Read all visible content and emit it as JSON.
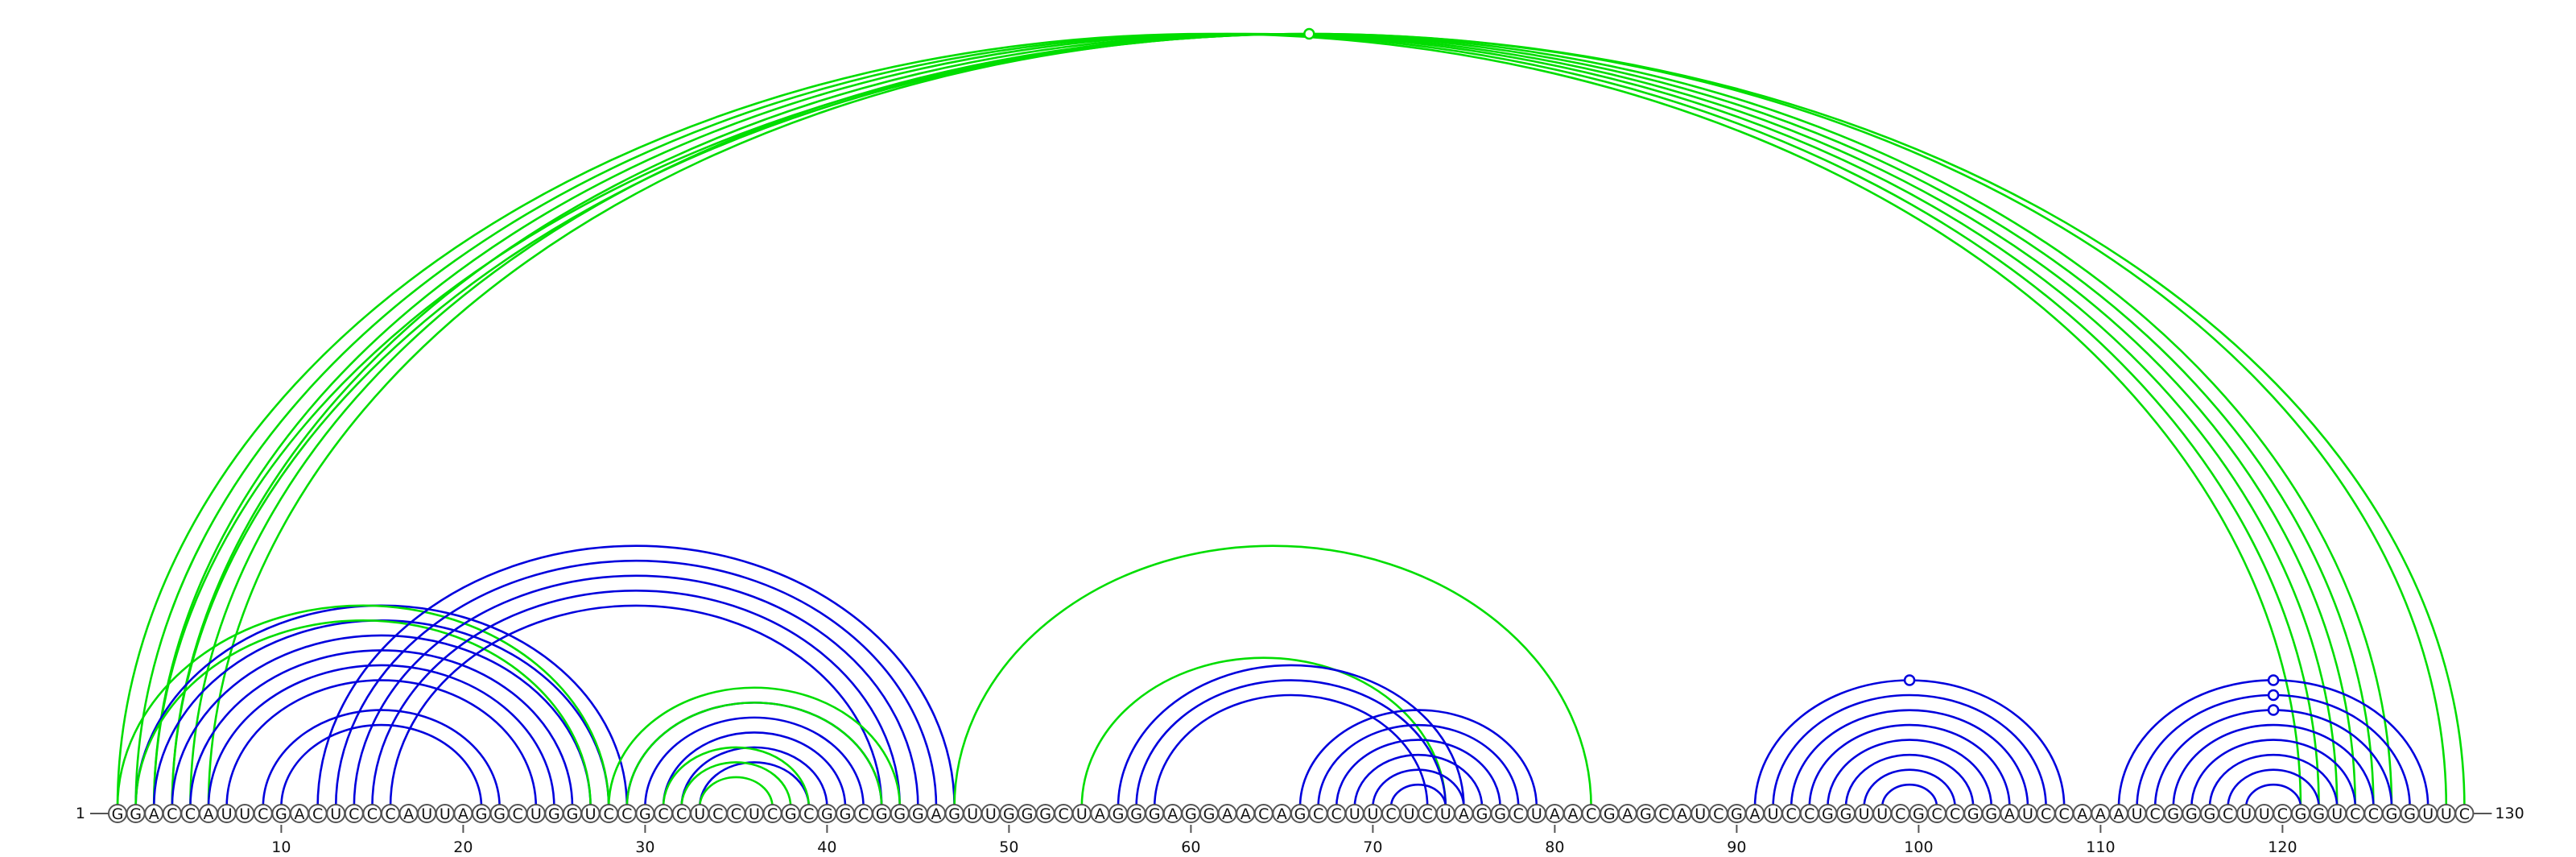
{
  "sequence": "GGACCAUUCGACUCCCAUUAGGCUGGUCCGCCUCCUCGCGGCGGGAGUUGGGCUAGGGAGGAACAGCCUUCUCUAGGCUAACGAGCAUCGAUCCGGUUCGCCGGAUCCAAAUCGGGCUUCGGUCCGGUUC",
  "start_label": "1",
  "end_label": "130",
  "tick_labels": [
    "10",
    "20",
    "30",
    "40",
    "50",
    "60",
    "70",
    "80",
    "90",
    "100",
    "110",
    "120"
  ],
  "colors": {
    "pair_set_a": "#0000dd",
    "pair_set_b": "#00dd00",
    "backbone": "#555555"
  },
  "arcs": [
    {
      "color": "green",
      "pairs": [
        [
          1,
          121
        ],
        [
          2,
          122
        ],
        [
          3,
          123
        ],
        [
          4,
          124
        ],
        [
          5,
          125
        ],
        [
          6,
          126
        ]
      ]
    },
    {
      "color": "green",
      "pairs": [
        [
          3,
          130
        ],
        [
          4,
          129
        ]
      ],
      "markers": [
        66
      ]
    },
    {
      "color": "blue",
      "pairs": [
        [
          2,
          29
        ],
        [
          3,
          28
        ],
        [
          4,
          27
        ],
        [
          5,
          26
        ],
        [
          6,
          25
        ],
        [
          7,
          24
        ],
        [
          9,
          22
        ],
        [
          10,
          21
        ]
      ]
    },
    {
      "color": "green",
      "pairs": [
        [
          1,
          28
        ],
        [
          2,
          27
        ]
      ]
    },
    {
      "color": "blue",
      "pairs": [
        [
          12,
          47
        ],
        [
          13,
          46
        ],
        [
          14,
          45
        ],
        [
          15,
          44
        ],
        [
          16,
          43
        ]
      ]
    },
    {
      "color": "blue",
      "pairs": [
        [
          29,
          43
        ],
        [
          30,
          42
        ],
        [
          31,
          41
        ],
        [
          32,
          40
        ],
        [
          33,
          39
        ]
      ]
    },
    {
      "color": "green",
      "pairs": [
        [
          28,
          44
        ],
        [
          29,
          43
        ],
        [
          31,
          39
        ],
        [
          32,
          38
        ],
        [
          33,
          37
        ]
      ]
    },
    {
      "color": "green",
      "pairs": [
        [
          47,
          82
        ]
      ]
    },
    {
      "color": "green",
      "pairs": [
        [
          54,
          74
        ]
      ]
    },
    {
      "color": "blue",
      "pairs": [
        [
          56,
          75
        ],
        [
          57,
          74
        ],
        [
          58,
          73
        ]
      ]
    },
    {
      "color": "blue",
      "pairs": [
        [
          66,
          79
        ],
        [
          67,
          78
        ],
        [
          68,
          77
        ],
        [
          69,
          76
        ],
        [
          70,
          75
        ],
        [
          71,
          74
        ]
      ]
    },
    {
      "color": "blue",
      "pairs": [
        [
          91,
          108
        ],
        [
          92,
          107
        ],
        [
          93,
          106
        ],
        [
          94,
          105
        ],
        [
          95,
          104
        ],
        [
          96,
          103
        ],
        [
          97,
          102
        ],
        [
          98,
          101
        ]
      ],
      "markers": [
        99
      ]
    },
    {
      "color": "blue",
      "pairs": [
        [
          111,
          128
        ],
        [
          112,
          127
        ],
        [
          113,
          126
        ],
        [
          114,
          125
        ],
        [
          115,
          124
        ],
        [
          116,
          123
        ],
        [
          117,
          122
        ],
        [
          118,
          121
        ]
      ],
      "markers": [
        120,
        120,
        120
      ]
    }
  ]
}
